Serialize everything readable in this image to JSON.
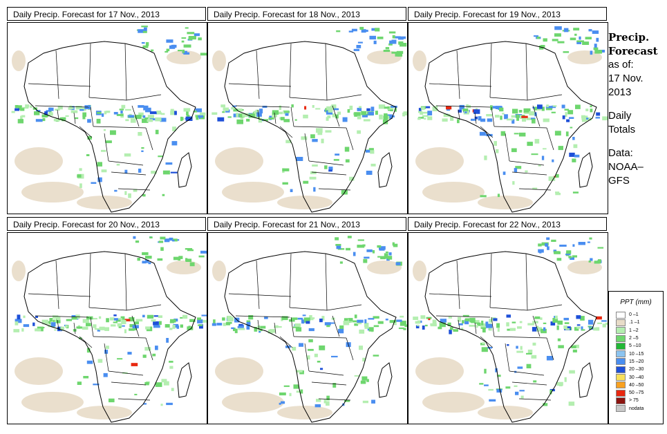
{
  "panels": [
    {
      "title": "Daily Precip. Forecast for  17 Nov., 2013"
    },
    {
      "title": "Daily Precip. Forecast for  18 Nov., 2013"
    },
    {
      "title": "Daily Precip. Forecast for  19 Nov., 2013"
    },
    {
      "title": "Daily Precip. Forecast for  20 Nov., 2013"
    },
    {
      "title": "Daily Precip. Forecast for  21 Nov., 2013"
    },
    {
      "title": "Daily Precip. Forecast for  22 Nov., 2013"
    }
  ],
  "side": {
    "title_line1": "Precip.",
    "title_line2": "Forecast",
    "asof_line1": "as of:",
    "asof_line2": "17 Nov.",
    "asof_line3": "2013",
    "totals_line1": "Daily",
    "totals_line2": "Totals",
    "data_line1": "Data:",
    "data_line2": "NOAA–",
    "data_line3": "GFS"
  },
  "legend": {
    "title": "PPT (mm)",
    "items": [
      {
        "label": "0 –1",
        "color": "#ffffff"
      },
      {
        "label": ".1 –1",
        "color": "#e8dcc8"
      },
      {
        "label": "1 –2",
        "color": "#b4eeb0"
      },
      {
        "label": "2 –5",
        "color": "#6ed66e"
      },
      {
        "label": "5 –10",
        "color": "#22b836"
      },
      {
        "label": "10 –15",
        "color": "#8cc4f0"
      },
      {
        "label": "15 –20",
        "color": "#4a8ef0"
      },
      {
        "label": "20 –30",
        "color": "#1e50d8"
      },
      {
        "label": "30 –40",
        "color": "#f8e05a"
      },
      {
        "label": "40 –50",
        "color": "#f8a020"
      },
      {
        "label": "50 –75",
        "color": "#e82810"
      },
      {
        "label": "> 75",
        "color": "#8c1410"
      },
      {
        "label": "nodata",
        "color": "#c8c8c8"
      }
    ]
  },
  "colors": {
    "dry": "#e8dcc8",
    "light": "#b4eeb0",
    "mid": "#6ed66e",
    "wet": "#4a8ef0",
    "heavy": "#1e50d8",
    "extreme": "#e82810",
    "border": "#000000"
  }
}
